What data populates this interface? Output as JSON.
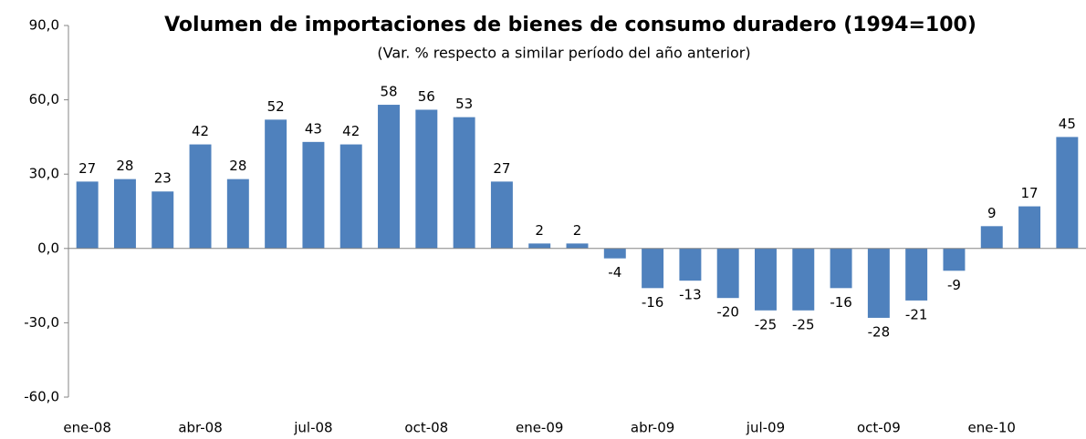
{
  "chart_data": {
    "type": "bar",
    "title": "Volumen de importaciones de bienes de consumo duradero (1994=100)",
    "subtitle": "(Var. % respecto a similar período del año anterior)",
    "categories": [
      "ene-08",
      null,
      null,
      "abr-08",
      null,
      null,
      "jul-08",
      null,
      null,
      "oct-08",
      null,
      null,
      "ene-09",
      null,
      null,
      "abr-09",
      null,
      null,
      "jul-09",
      null,
      null,
      "oct-09",
      null,
      null,
      "ene-10",
      null,
      null
    ],
    "values": [
      27,
      28,
      23,
      42,
      28,
      52,
      43,
      42,
      58,
      56,
      53,
      27,
      2,
      2,
      -4,
      -16,
      -13,
      -20,
      -25,
      -25,
      -16,
      -28,
      -21,
      -9,
      9,
      17,
      45
    ],
    "color": "#4f81bd",
    "ylim": [
      -60,
      90
    ],
    "yticks": [
      {
        "value": -60,
        "label": "-60,0"
      },
      {
        "value": -30,
        "label": "-30,0"
      },
      {
        "value": 0,
        "label": "0,0"
      },
      {
        "value": 30,
        "label": "30,0"
      },
      {
        "value": 60,
        "label": "60,0"
      },
      {
        "value": 90,
        "label": "90,0"
      }
    ],
    "grid": false
  }
}
